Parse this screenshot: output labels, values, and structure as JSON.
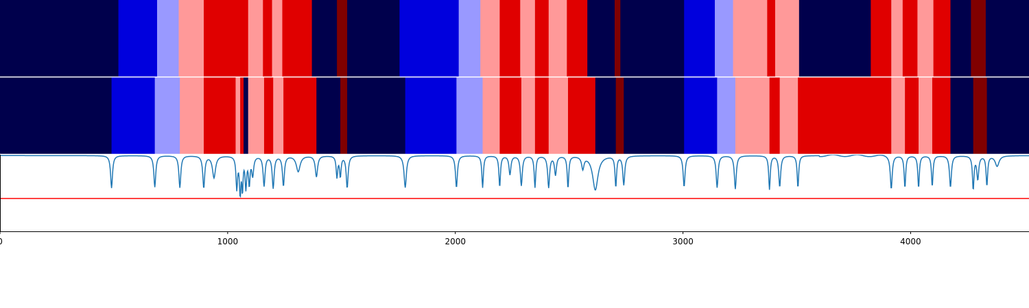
{
  "colors": {
    "palette": [
      "#00004c",
      "#0000dd",
      "#9999ff",
      "#ff9999",
      "#e00000",
      "#800000"
    ],
    "line": "#1f77b4",
    "threshold": "#ff0000",
    "background": "#ffffff",
    "spine": "#000000",
    "separator": "#ffffff"
  },
  "chart_data": [
    {
      "type": "heatmap",
      "title": "",
      "xlim": [
        0,
        4520
      ],
      "colormap": "seismic",
      "segments": [
        [
          0,
          520,
          0
        ],
        [
          520,
          690,
          1
        ],
        [
          690,
          785,
          2
        ],
        [
          785,
          895,
          3
        ],
        [
          895,
          1090,
          4
        ],
        [
          1090,
          1155,
          3
        ],
        [
          1155,
          1195,
          4
        ],
        [
          1195,
          1240,
          3
        ],
        [
          1240,
          1370,
          4
        ],
        [
          1370,
          1480,
          0
        ],
        [
          1480,
          1525,
          5
        ],
        [
          1525,
          1755,
          0
        ],
        [
          1755,
          2015,
          1
        ],
        [
          2015,
          2110,
          2
        ],
        [
          2110,
          2195,
          3
        ],
        [
          2195,
          2285,
          4
        ],
        [
          2285,
          2350,
          3
        ],
        [
          2350,
          2410,
          4
        ],
        [
          2410,
          2490,
          3
        ],
        [
          2490,
          2580,
          4
        ],
        [
          2580,
          2700,
          0
        ],
        [
          2700,
          2725,
          5
        ],
        [
          2725,
          3005,
          0
        ],
        [
          3005,
          3140,
          1
        ],
        [
          3140,
          3220,
          2
        ],
        [
          3220,
          3370,
          3
        ],
        [
          3370,
          3405,
          4
        ],
        [
          3405,
          3510,
          3
        ],
        [
          3510,
          3825,
          0
        ],
        [
          3825,
          3915,
          4
        ],
        [
          3915,
          3965,
          3
        ],
        [
          3965,
          4030,
          4
        ],
        [
          4030,
          4100,
          3
        ],
        [
          4100,
          4175,
          4
        ],
        [
          4175,
          4265,
          0
        ],
        [
          4265,
          4330,
          5
        ],
        [
          4330,
          4520,
          0
        ]
      ]
    },
    {
      "type": "heatmap",
      "title": "",
      "xlim": [
        0,
        4520
      ],
      "colormap": "seismic",
      "segments": [
        [
          0,
          490,
          0
        ],
        [
          490,
          680,
          1
        ],
        [
          680,
          790,
          2
        ],
        [
          790,
          895,
          3
        ],
        [
          895,
          1035,
          4
        ],
        [
          1035,
          1055,
          3
        ],
        [
          1055,
          1070,
          4
        ],
        [
          1070,
          1090,
          0
        ],
        [
          1090,
          1160,
          3
        ],
        [
          1160,
          1200,
          4
        ],
        [
          1200,
          1245,
          3
        ],
        [
          1245,
          1390,
          4
        ],
        [
          1390,
          1495,
          0
        ],
        [
          1495,
          1525,
          5
        ],
        [
          1525,
          1780,
          0
        ],
        [
          1780,
          2005,
          1
        ],
        [
          2005,
          2120,
          2
        ],
        [
          2120,
          2195,
          3
        ],
        [
          2195,
          2290,
          4
        ],
        [
          2290,
          2350,
          3
        ],
        [
          2350,
          2410,
          4
        ],
        [
          2410,
          2495,
          3
        ],
        [
          2495,
          2615,
          4
        ],
        [
          2615,
          2705,
          0
        ],
        [
          2705,
          2740,
          5
        ],
        [
          2740,
          3005,
          0
        ],
        [
          3005,
          3150,
          1
        ],
        [
          3150,
          3230,
          2
        ],
        [
          3230,
          3380,
          3
        ],
        [
          3380,
          3425,
          4
        ],
        [
          3425,
          3505,
          3
        ],
        [
          3505,
          3915,
          4
        ],
        [
          3915,
          3975,
          3
        ],
        [
          3975,
          4035,
          4
        ],
        [
          4035,
          4095,
          3
        ],
        [
          4095,
          4175,
          4
        ],
        [
          4175,
          4275,
          0
        ],
        [
          4275,
          4335,
          5
        ],
        [
          4335,
          4520,
          0
        ]
      ]
    },
    {
      "type": "line",
      "title": "",
      "xlabel": "",
      "ylabel": "",
      "xlim": [
        0,
        4520
      ],
      "ylim": [
        -0.75,
        1.0
      ],
      "xticks": [
        "0",
        "1000",
        "2000",
        "3000",
        "4000"
      ],
      "grid": false,
      "threshold": 0.0,
      "baseline": 0.98,
      "series": [
        {
          "dips": [
            [
              490,
              0.24,
              5
            ],
            [
              680,
              0.26,
              5
            ],
            [
              790,
              0.25,
              5
            ],
            [
              895,
              0.25,
              5
            ],
            [
              940,
              0.48,
              8
            ],
            [
              1040,
              0.25,
              4
            ],
            [
              1055,
              0.15,
              4
            ],
            [
              1065,
              0.26,
              3
            ],
            [
              1080,
              0.28,
              4
            ],
            [
              1095,
              0.36,
              4
            ],
            [
              1110,
              0.55,
              5
            ],
            [
              1160,
              0.3,
              5
            ],
            [
              1200,
              0.25,
              5
            ],
            [
              1245,
              0.3,
              5
            ],
            [
              1310,
              0.62,
              10
            ],
            [
              1390,
              0.5,
              6
            ],
            [
              1480,
              0.5,
              4
            ],
            [
              1495,
              0.52,
              4
            ],
            [
              1525,
              0.25,
              5
            ],
            [
              1780,
              0.25,
              6
            ],
            [
              2005,
              0.25,
              5
            ],
            [
              2120,
              0.25,
              4
            ],
            [
              2195,
              0.27,
              4
            ],
            [
              2240,
              0.55,
              5
            ],
            [
              2290,
              0.3,
              5
            ],
            [
              2350,
              0.26,
              4
            ],
            [
              2410,
              0.26,
              5
            ],
            [
              2440,
              0.55,
              5
            ],
            [
              2495,
              0.25,
              4
            ],
            [
              2560,
              0.7,
              6
            ],
            [
              2615,
              0.2,
              14
            ],
            [
              2705,
              0.28,
              4
            ],
            [
              2740,
              0.32,
              5
            ],
            [
              3005,
              0.27,
              5
            ],
            [
              3150,
              0.25,
              5
            ],
            [
              3230,
              0.22,
              5
            ],
            [
              3380,
              0.21,
              4
            ],
            [
              3425,
              0.27,
              5
            ],
            [
              3505,
              0.25,
              4
            ],
            [
              3915,
              0.22,
              5
            ],
            [
              3975,
              0.25,
              4
            ],
            [
              4035,
              0.25,
              4
            ],
            [
              4095,
              0.28,
              4
            ],
            [
              4175,
              0.26,
              5
            ],
            [
              4275,
              0.22,
              4
            ],
            [
              4295,
              0.45,
              5
            ],
            [
              4335,
              0.3,
              4
            ],
            [
              4380,
              0.74,
              10
            ]
          ],
          "wobble": [
            3600,
            3900,
            0.02
          ]
        }
      ]
    }
  ]
}
